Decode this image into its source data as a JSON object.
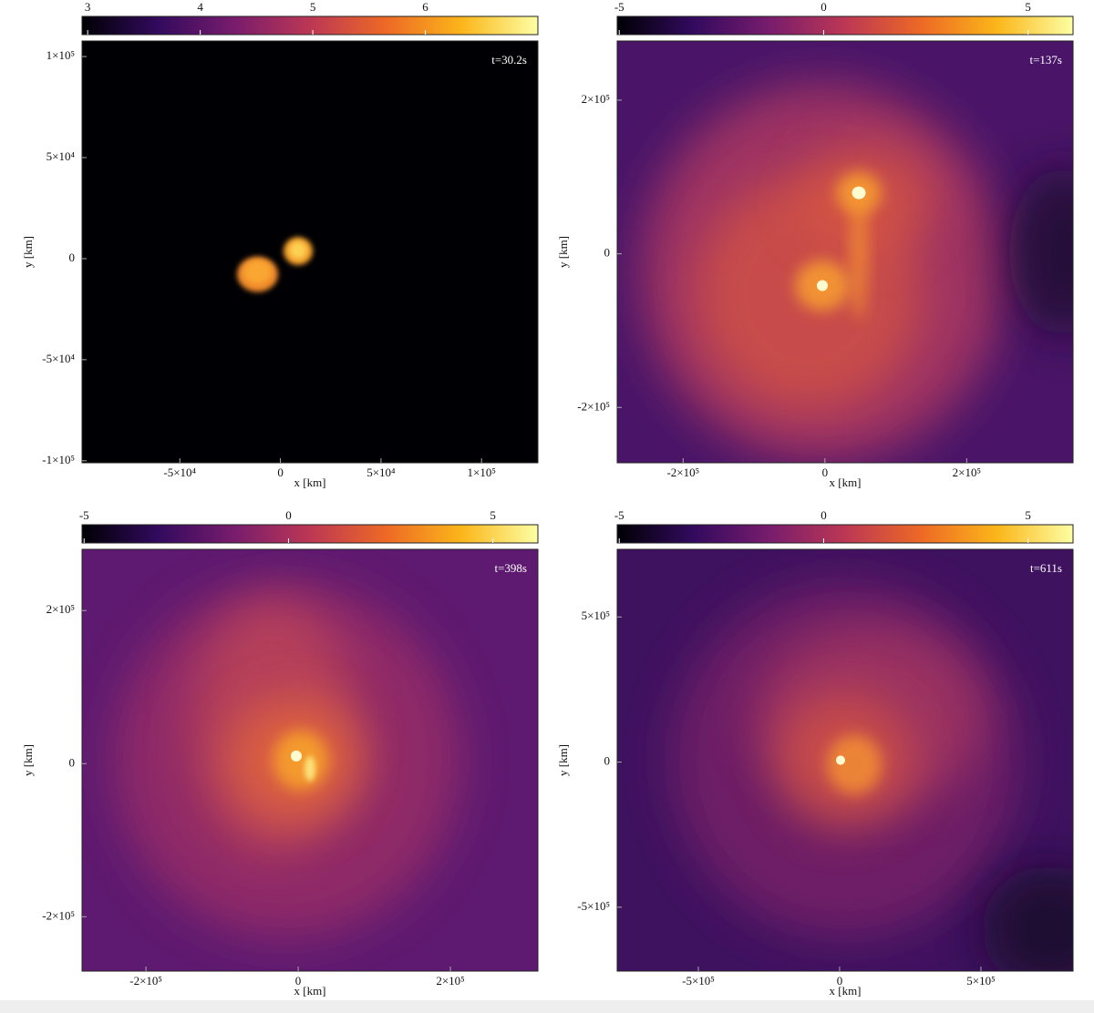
{
  "chart_data": [
    {
      "type": "image",
      "colormap": "inferno",
      "annotation": "t=30.2s",
      "xlabel": "x [km]",
      "ylabel": "y [km]",
      "xlim": [
        -98600,
        128000
      ],
      "ylim": [
        -101000,
        107700
      ],
      "xticks": [
        {
          "value": -50000,
          "label": "-5×10⁴"
        },
        0,
        {
          "value": 50000,
          "label": "5×10⁴"
        },
        {
          "value": 100000,
          "label": "1×10⁵"
        }
      ],
      "yticks": [
        {
          "value": -100000,
          "label": "-1×10⁵"
        },
        {
          "value": -50000,
          "label": "-5×10⁴"
        },
        0,
        {
          "value": 50000,
          "label": "5×10⁴"
        },
        {
          "value": 100000,
          "label": "1×10⁵"
        }
      ],
      "colorbar": {
        "lim": [
          2.95,
          7.0
        ],
        "ticks": [
          3,
          4,
          5,
          6
        ]
      }
    },
    {
      "type": "image",
      "colormap": "inferno",
      "annotation": "t=137s",
      "xlabel": "x [km]",
      "ylabel": "y [km]",
      "xlim": [
        -293000,
        350000
      ],
      "ylim": [
        -272000,
        277000
      ],
      "xticks": [
        {
          "value": -200000,
          "label": "-2×10⁵"
        },
        0,
        {
          "value": 200000,
          "label": "2×10⁵"
        }
      ],
      "yticks": [
        {
          "value": -200000,
          "label": "-2×10⁵"
        },
        0,
        {
          "value": 200000,
          "label": "2×10⁵"
        }
      ],
      "colorbar": {
        "lim": [
          -5.05,
          6.1
        ],
        "ticks": [
          -5,
          0,
          5
        ]
      }
    },
    {
      "type": "image",
      "colormap": "inferno",
      "annotation": "t=398s",
      "xlabel": "x [km]",
      "ylabel": "y [km]",
      "xlim": [
        -284000,
        315000
      ],
      "ylim": [
        -271000,
        280000
      ],
      "xticks": [
        {
          "value": -200000,
          "label": "-2×10⁵"
        },
        0,
        {
          "value": 200000,
          "label": "2×10⁵"
        }
      ],
      "yticks": [
        {
          "value": -200000,
          "label": "-2×10⁵"
        },
        0,
        {
          "value": 200000,
          "label": "2×10⁵"
        }
      ],
      "colorbar": {
        "lim": [
          -5.05,
          6.1
        ],
        "ticks": [
          -5,
          0,
          5
        ]
      }
    },
    {
      "type": "image",
      "colormap": "inferno",
      "annotation": "t=611s",
      "xlabel": "x [km]",
      "ylabel": "y [km]",
      "xlim": [
        -787000,
        826000
      ],
      "ylim": [
        -720000,
        733000
      ],
      "xticks": [
        {
          "value": -500000,
          "label": "-5×10⁵"
        },
        0,
        {
          "value": 500000,
          "label": "5×10⁵"
        }
      ],
      "yticks": [
        {
          "value": -500000,
          "label": "-5×10⁵"
        },
        0,
        {
          "value": 500000,
          "label": "5×10⁵"
        }
      ],
      "colorbar": {
        "lim": [
          -5.05,
          6.1
        ],
        "ticks": [
          -5,
          0,
          5
        ]
      }
    }
  ]
}
